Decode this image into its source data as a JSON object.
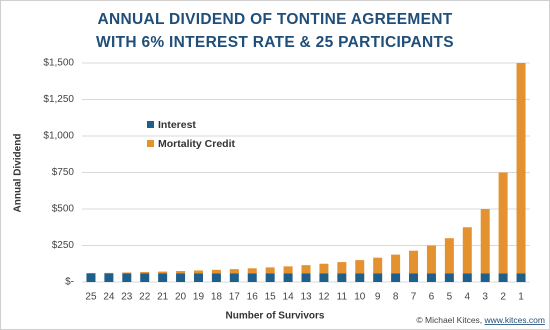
{
  "chart_data": {
    "type": "stacked_bar",
    "title": [
      "ANNUAL DIVIDEND OF TONTINE AGREEMENT",
      "WITH 6% INTEREST RATE & 25 PARTICIPANTS"
    ],
    "x_label": "Number of Survivors",
    "y_label": "Annual Dividend",
    "categories": [
      "25",
      "24",
      "23",
      "22",
      "21",
      "20",
      "19",
      "18",
      "17",
      "16",
      "15",
      "14",
      "13",
      "12",
      "11",
      "10",
      "9",
      "8",
      "7",
      "6",
      "5",
      "4",
      "3",
      "2",
      "1"
    ],
    "series": [
      {
        "name": "Interest",
        "color": "#1f5f8b",
        "values": [
          60,
          60,
          60,
          60,
          60,
          60,
          60,
          60,
          60,
          60,
          60,
          60,
          60,
          60,
          60,
          60,
          60,
          60,
          60,
          60,
          60,
          60,
          60,
          60,
          60
        ]
      },
      {
        "name": "Mortality Credit",
        "color": "#e3922f",
        "values": [
          0,
          2.5,
          5.2,
          8.2,
          11.4,
          15,
          19,
          23.3,
          28.2,
          33.8,
          40,
          47.1,
          55.4,
          65,
          76.4,
          90,
          106.7,
          127.5,
          154.3,
          190,
          240,
          315,
          440,
          690,
          1440
        ]
      }
    ],
    "ylim": [
      0,
      1500
    ],
    "yticks": [
      {
        "value": 0,
        "label": "$-"
      },
      {
        "value": 250,
        "label": "$250"
      },
      {
        "value": 500,
        "label": "$500"
      },
      {
        "value": 750,
        "label": "$750"
      },
      {
        "value": 1000,
        "label": "$1,000"
      },
      {
        "value": 1250,
        "label": "$1,250"
      },
      {
        "value": 1500,
        "label": "$1,500"
      }
    ],
    "grid": true,
    "legend": "upper left",
    "credit": "© Michael Kitces, ",
    "credit_link": "www.kitces.com"
  }
}
